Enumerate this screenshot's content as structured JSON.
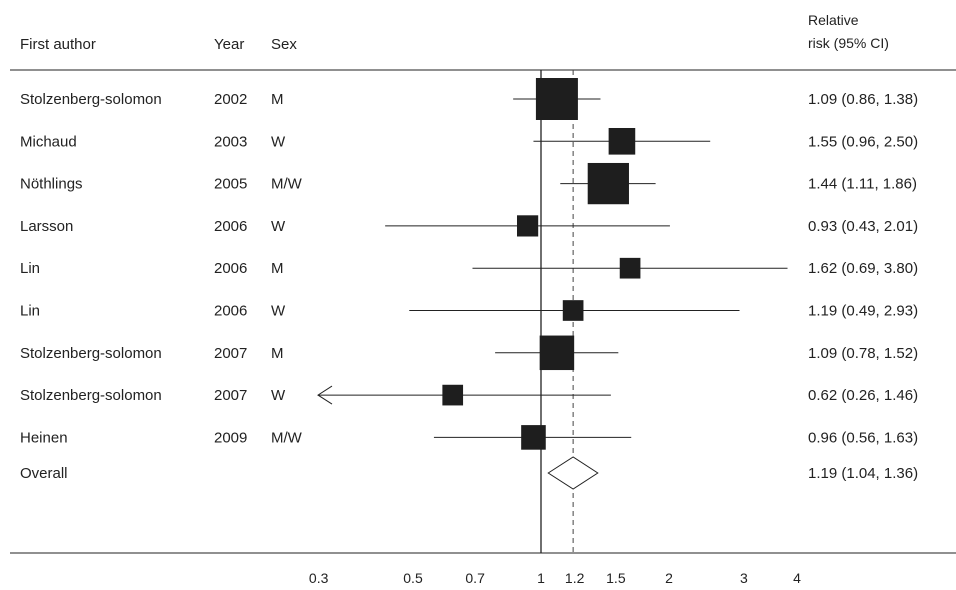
{
  "headers": {
    "author": "First author",
    "year": "Year",
    "sex": "Sex",
    "rr_line1": "Relative",
    "rr_line2": "risk (95% CI)"
  },
  "chart_data": {
    "type": "forest",
    "x_scale": "log",
    "xlim": [
      0.24,
      4.2
    ],
    "x_ticks": [
      0.3,
      0.5,
      0.7,
      1,
      1.2,
      1.5,
      2,
      3,
      4
    ],
    "x_tick_labels": [
      "0.3",
      "0.5",
      "0.7",
      "1",
      "1.2",
      "1.5",
      "2",
      "3",
      "4"
    ],
    "null_line": 1,
    "pooled_line": 1.19,
    "studies": [
      {
        "author": "Stolzenberg-solomon",
        "year": "2002",
        "sex": "M",
        "rr": 1.09,
        "lo": 0.86,
        "hi": 1.38,
        "weight": 1.0,
        "label": "1.09 (0.86, 1.38)"
      },
      {
        "author": "Michaud",
        "year": "2003",
        "sex": "W",
        "rr": 1.55,
        "lo": 0.96,
        "hi": 2.5,
        "weight": 0.22,
        "label": "1.55 (0.96, 2.50)"
      },
      {
        "author": "Nöthlings",
        "year": "2005",
        "sex": "M/W",
        "rr": 1.44,
        "lo": 1.11,
        "hi": 1.86,
        "weight": 0.95,
        "label": "1.44 (1.11, 1.86)"
      },
      {
        "author": "Larsson",
        "year": "2006",
        "sex": "W",
        "rr": 0.93,
        "lo": 0.43,
        "hi": 2.01,
        "weight": 0.08,
        "label": "0.93 (0.43, 2.01)"
      },
      {
        "author": "Lin",
        "year": "2006",
        "sex": "M",
        "rr": 1.62,
        "lo": 0.69,
        "hi": 3.8,
        "weight": 0.07,
        "label": "1.62 (0.69, 3.80)"
      },
      {
        "author": "Lin",
        "year": "2006",
        "sex": "W",
        "rr": 1.19,
        "lo": 0.49,
        "hi": 2.93,
        "weight": 0.07,
        "label": "1.19 (0.49, 2.93)"
      },
      {
        "author": "Stolzenberg-solomon",
        "year": "2007",
        "sex": "M",
        "rr": 1.09,
        "lo": 0.78,
        "hi": 1.52,
        "weight": 0.55,
        "label": "1.09 (0.78, 1.52)"
      },
      {
        "author": "Stolzenberg-solomon",
        "year": "2007",
        "sex": "W",
        "rr": 0.62,
        "lo": 0.26,
        "hi": 1.46,
        "weight": 0.07,
        "label": "0.62 (0.26, 1.46)"
      },
      {
        "author": "Heinen",
        "year": "2009",
        "sex": "M/W",
        "rr": 0.96,
        "lo": 0.56,
        "hi": 1.63,
        "weight": 0.16,
        "label": "0.96 (0.56, 1.63)"
      }
    ],
    "overall": {
      "author": "Overall",
      "rr": 1.19,
      "lo": 1.04,
      "hi": 1.36,
      "label": "1.19 (1.04, 1.36)"
    }
  }
}
